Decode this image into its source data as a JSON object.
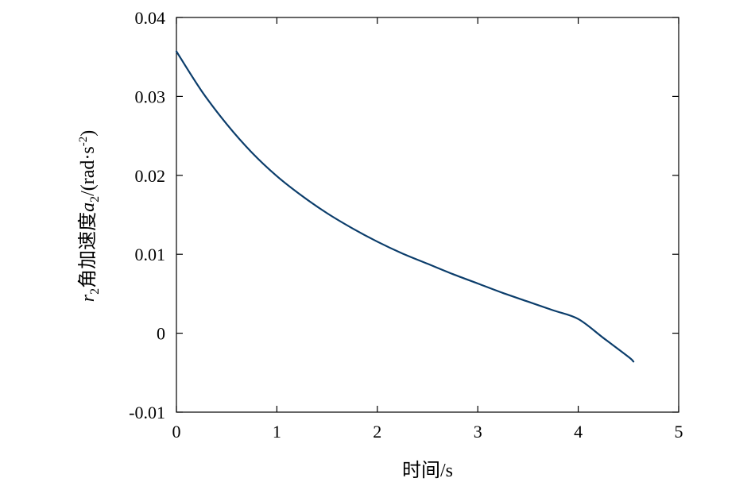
{
  "chart_data": {
    "type": "line",
    "title": "",
    "xlabel": "时间/s",
    "ylabel": {
      "var": "r",
      "var_sub": "2",
      "text": "角加速度",
      "sym": "a",
      "sym_sub": "2",
      "unit_open": "/(rad·s",
      "unit_sup": "-2",
      "unit_close": ")"
    },
    "xlim": [
      0,
      5
    ],
    "ylim": [
      -0.01,
      0.04
    ],
    "xticks": [
      0,
      1,
      2,
      3,
      4,
      5
    ],
    "xtick_labels": [
      "0",
      "1",
      "2",
      "3",
      "4",
      "5"
    ],
    "yticks": [
      -0.01,
      0,
      0.01,
      0.02,
      0.03,
      0.04
    ],
    "ytick_labels": [
      "-0.01",
      "0",
      "0.01",
      "0.02",
      "0.03",
      "0.04"
    ],
    "grid": false,
    "series": [
      {
        "color": "#0b3d6b",
        "x": [
          0,
          0.25,
          0.5,
          0.75,
          1.0,
          1.25,
          1.5,
          1.75,
          2.0,
          2.25,
          2.5,
          2.75,
          3.0,
          3.25,
          3.5,
          3.75,
          4.0,
          4.25,
          4.5,
          4.55
        ],
        "y": [
          0.0357,
          0.0307,
          0.0265,
          0.0229,
          0.0199,
          0.0174,
          0.0152,
          0.0133,
          0.0116,
          0.0101,
          0.0088,
          0.0075,
          0.0063,
          0.0051,
          0.004,
          0.0029,
          0.0018,
          -0.0006,
          -0.003,
          -0.0036
        ]
      }
    ]
  }
}
